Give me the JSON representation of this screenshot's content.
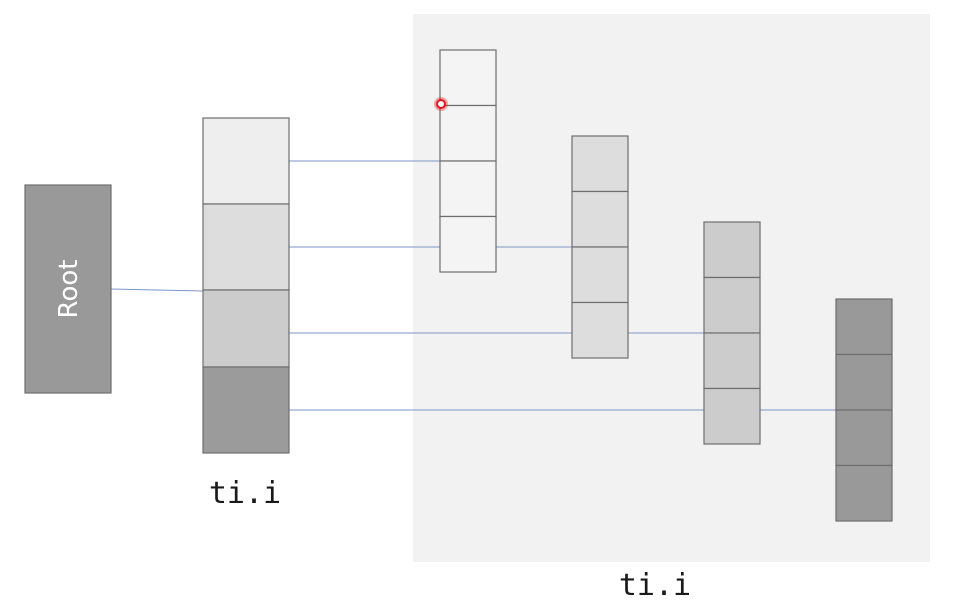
{
  "root": {
    "label": "Root",
    "color": "#999999"
  },
  "top_level_array": {
    "caption": "ti.i",
    "cell_colors": [
      "#eeeeee",
      "#dddddd",
      "#cccccc",
      "#9b9b9b"
    ]
  },
  "second_level_group": {
    "caption": "ti.i",
    "panel_color": "#f2f2f2",
    "arrays": [
      {
        "cell_color": "#f4f4f4"
      },
      {
        "cell_color": "#dddddd"
      },
      {
        "cell_color": "#cccccc"
      },
      {
        "cell_color": "#999999"
      }
    ]
  },
  "pointer_marker": {
    "color": "#e8141b"
  },
  "colors": {
    "link": "#7d95c7",
    "cell_border": "#6e6e6e"
  }
}
